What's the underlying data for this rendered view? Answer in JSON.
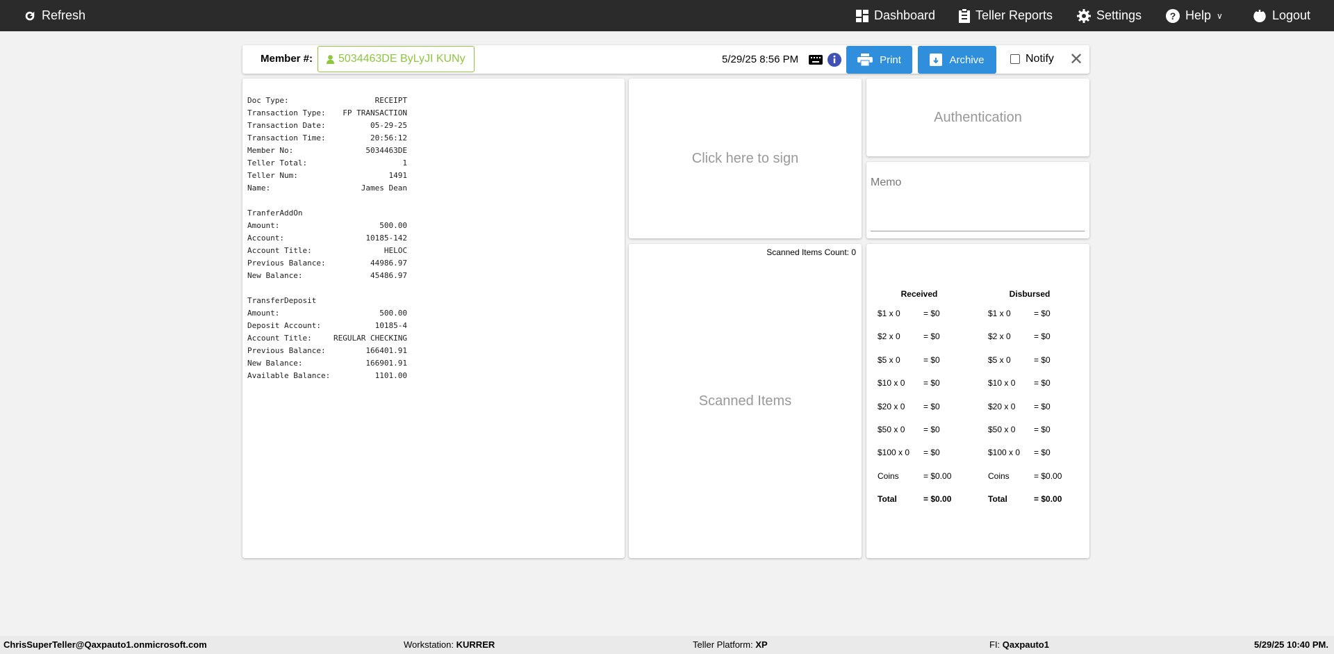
{
  "topbar": {
    "refresh": "Refresh",
    "dashboard": "Dashboard",
    "teller_reports": "Teller Reports",
    "settings": "Settings",
    "help": "Help",
    "logout": "Logout"
  },
  "member": {
    "label": "Member #:",
    "value": "5034463DE ByLyJI KUNy",
    "datetime": "5/29/25 8:56 PM",
    "print": "Print",
    "archive": "Archive",
    "notify": "Notify",
    "notify_checked": false
  },
  "receipt": {
    "header": [
      [
        "Doc Type:",
        "RECEIPT"
      ],
      [
        "Transaction Type:",
        "FP TRANSACTION"
      ],
      [
        "Transaction Date:",
        "05-29-25"
      ],
      [
        "Transaction Time:",
        "20:56:12"
      ],
      [
        "Member No:",
        "5034463DE"
      ],
      [
        "Teller Total:",
        "1"
      ],
      [
        "Teller Num:",
        "1491"
      ],
      [
        "Name:",
        "James Dean"
      ]
    ],
    "sections": [
      {
        "title": "TranferAddOn",
        "rows": [
          [
            "Amount:",
            "500.00"
          ],
          [
            "Account:",
            "10185-142"
          ],
          [
            "Account Title:",
            "HELOC"
          ],
          [
            "Previous Balance:",
            "44986.97"
          ],
          [
            "New Balance:",
            "45486.97"
          ]
        ]
      },
      {
        "title": "TransferDeposit",
        "rows": [
          [
            "Amount:",
            "500.00"
          ],
          [
            "Deposit Account:",
            "10185-4"
          ],
          [
            "Account Title:",
            "REGULAR CHECKING"
          ],
          [
            "Previous Balance:",
            "166401.91"
          ],
          [
            "New Balance:",
            "166901.91"
          ],
          [
            "Available Balance:",
            "1101.00"
          ]
        ]
      }
    ]
  },
  "signature": {
    "placeholder": "Click here to sign"
  },
  "scanned": {
    "count_label": "Scanned Items Count: 0",
    "placeholder": "Scanned Items"
  },
  "authentication": {
    "label": "Authentication"
  },
  "memo": {
    "label": "Memo",
    "value": ""
  },
  "cash": {
    "columns": [
      {
        "title": "Received",
        "rows": [
          [
            "$1 x 0",
            "= $0"
          ],
          [
            "$2 x 0",
            "= $0"
          ],
          [
            "$5 x 0",
            "= $0"
          ],
          [
            "$10 x 0",
            "= $0"
          ],
          [
            "$20 x 0",
            "= $0"
          ],
          [
            "$50 x 0",
            "= $0"
          ],
          [
            "$100 x 0",
            "= $0"
          ],
          [
            "Coins",
            "= $0.00"
          ],
          [
            "Total",
            "= $0.00"
          ]
        ]
      },
      {
        "title": "Disbursed",
        "rows": [
          [
            "$1 x 0",
            "= $0"
          ],
          [
            "$2 x 0",
            "= $0"
          ],
          [
            "$5 x 0",
            "= $0"
          ],
          [
            "$10 x 0",
            "= $0"
          ],
          [
            "$20 x 0",
            "= $0"
          ],
          [
            "$50 x 0",
            "= $0"
          ],
          [
            "$100 x 0",
            "= $0"
          ],
          [
            "Coins",
            "= $0.00"
          ],
          [
            "Total",
            "= $0.00"
          ]
        ]
      }
    ]
  },
  "footer": {
    "user": "ChrisSuperTeller@Qaxpauto1.onmicrosoft.com",
    "workstation_label": "Workstation:",
    "workstation": "KURRER",
    "platform_label": "Teller Platform:",
    "platform": "XP",
    "fi_label": "FI:",
    "fi": "Qaxpauto1",
    "datetime": "5/29/25 10:40 PM."
  },
  "colors": {
    "topbar": "#2b2b2b",
    "accent": "#2f8fdc",
    "member_green": "#8dc63f"
  }
}
